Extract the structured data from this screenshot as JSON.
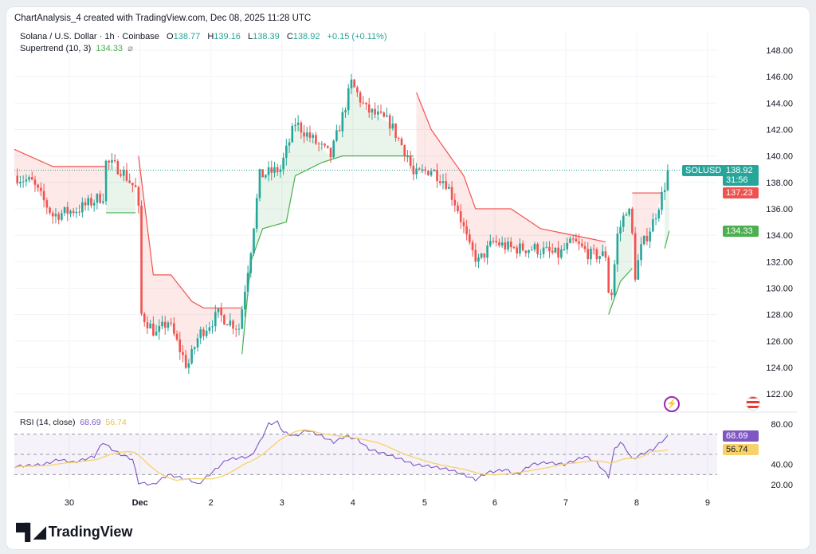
{
  "header": {
    "title": "ChartAnalysis_4 created with TradingView.com, Dec 08, 2025 11:28 UTC"
  },
  "legend": {
    "symbol": "Solana / U.S. Dollar · 1h · Coinbase",
    "o_label": "O",
    "o": "138.77",
    "h_label": "H",
    "h": "139.16",
    "l_label": "L",
    "l": "138.39",
    "c_label": "C",
    "c": "138.92",
    "change": "+0.15 (+0.11%)",
    "supertrend_label": "Supertrend (10, 3)",
    "supertrend_value": "134.33",
    "supertrend_icon": "⌀"
  },
  "rsi_legend": {
    "label": "RSI (14, close)",
    "value": "68.69",
    "ma": "56.74"
  },
  "tags": {
    "symbol": "SOLUSD",
    "price": "138.92",
    "countdown": "31:56",
    "st_down": "137.23",
    "st_up": "134.33",
    "rsi": "68.69",
    "rsi_ma": "56.74"
  },
  "brand": {
    "name": "TradingView"
  },
  "colors": {
    "up": "#26a69a",
    "down": "#ef5350",
    "st_up": "#4caf50",
    "st_down": "#ef5350",
    "rsi": "#7e57c2",
    "rsi_ma": "#f7d26a"
  },
  "chart_data": {
    "type": "candlestick",
    "title": "Solana / U.S. Dollar · 1h · Coinbase",
    "x_unit": "hours from chart start",
    "ylim": [
      121,
      149
    ],
    "price_ticks": [
      "148.00",
      "146.00",
      "144.00",
      "142.00",
      "140.00",
      "138.00",
      "136.00",
      "134.00",
      "132.00",
      "130.00",
      "128.00",
      "126.00",
      "124.00",
      "122.00"
    ],
    "x_ticks": [
      {
        "h": 18.6,
        "label": "30"
      },
      {
        "h": 42.5,
        "label": "Dec"
      },
      {
        "h": 66.5,
        "label": "2"
      },
      {
        "h": 90.5,
        "label": "3"
      },
      {
        "h": 114.5,
        "label": "4"
      },
      {
        "h": 138.8,
        "label": "5"
      },
      {
        "h": 162.5,
        "label": "6"
      },
      {
        "h": 186.5,
        "label": "7"
      },
      {
        "h": 210.5,
        "label": "8"
      },
      {
        "h": 234.5,
        "label": "9"
      }
    ],
    "close_path": [
      [
        0,
        138.5
      ],
      [
        6,
        138
      ],
      [
        13,
        135.5
      ],
      [
        22,
        136
      ],
      [
        30,
        137
      ],
      [
        31,
        139.5
      ],
      [
        36,
        139
      ],
      [
        41,
        137.5
      ],
      [
        42.5,
        135
      ],
      [
        43,
        128
      ],
      [
        48,
        126.5
      ],
      [
        52,
        127.5
      ],
      [
        58.5,
        124
      ],
      [
        62.5,
        126.5
      ],
      [
        69,
        128
      ],
      [
        76,
        127
      ],
      [
        80,
        133
      ],
      [
        83,
        138.5
      ],
      [
        90,
        139
      ],
      [
        95,
        142.5
      ],
      [
        102,
        141
      ],
      [
        107,
        140
      ],
      [
        111,
        143
      ],
      [
        114,
        145.5
      ],
      [
        119,
        143.5
      ],
      [
        127,
        142.5
      ],
      [
        133,
        140
      ],
      [
        135,
        138.5
      ],
      [
        141,
        139
      ],
      [
        146,
        138
      ],
      [
        150,
        136
      ],
      [
        154,
        133
      ],
      [
        157,
        132
      ],
      [
        162,
        133.5
      ],
      [
        168,
        133
      ],
      [
        176,
        133
      ],
      [
        184,
        132.5
      ],
      [
        189,
        133.5
      ],
      [
        195,
        132.5
      ],
      [
        200,
        132.5
      ],
      [
        201.5,
        128.5
      ],
      [
        204,
        134
      ],
      [
        207,
        136
      ],
      [
        208.5,
        135.5
      ],
      [
        210,
        131
      ],
      [
        212,
        133
      ],
      [
        216,
        135
      ],
      [
        219,
        137
      ],
      [
        221.5,
        138.92
      ]
    ],
    "supertrend": [
      {
        "dir": "down",
        "points": [
          [
            0,
            140.5
          ],
          [
            13,
            139.2
          ],
          [
            31,
            139.2
          ]
        ]
      },
      {
        "dir": "up",
        "points": [
          [
            31,
            135.7
          ],
          [
            41,
            135.7
          ]
        ]
      },
      {
        "dir": "down",
        "points": [
          [
            42,
            140
          ],
          [
            47,
            131
          ],
          [
            53,
            131
          ],
          [
            60,
            129
          ],
          [
            64,
            128.5
          ],
          [
            77,
            128.5
          ]
        ]
      },
      {
        "dir": "up",
        "points": [
          [
            77,
            125
          ],
          [
            80,
            132
          ],
          [
            84,
            134.5
          ],
          [
            92,
            135
          ],
          [
            95,
            138.5
          ],
          [
            104,
            139.5
          ],
          [
            111,
            140
          ],
          [
            135,
            140
          ]
        ]
      },
      {
        "dir": "down",
        "points": [
          [
            136,
            144.8
          ],
          [
            141,
            142
          ],
          [
            152,
            138.5
          ],
          [
            156,
            136
          ],
          [
            168,
            136
          ],
          [
            178,
            134.5
          ],
          [
            189,
            134
          ],
          [
            200,
            133.5
          ]
        ]
      },
      {
        "dir": "up",
        "points": [
          [
            201,
            128
          ],
          [
            205,
            130.5
          ],
          [
            209,
            131.5
          ]
        ]
      },
      {
        "dir": "down",
        "points": [
          [
            209,
            137.2
          ],
          [
            219,
            137.2
          ]
        ]
      },
      {
        "dir": "up",
        "points": [
          [
            220,
            133
          ],
          [
            221.5,
            134.33
          ]
        ]
      }
    ],
    "rsi": {
      "ylim": [
        10,
        85
      ],
      "ticks": [
        "80.00",
        "40.00",
        "20.00"
      ],
      "levels": [
        70,
        50,
        30
      ],
      "path": [
        [
          0,
          38
        ],
        [
          10,
          40
        ],
        [
          15,
          45
        ],
        [
          20,
          42
        ],
        [
          27,
          48
        ],
        [
          30,
          62
        ],
        [
          33,
          55
        ],
        [
          36,
          50
        ],
        [
          40,
          45
        ],
        [
          42,
          22
        ],
        [
          47,
          20
        ],
        [
          52,
          30
        ],
        [
          60,
          24
        ],
        [
          62,
          20
        ],
        [
          66,
          30
        ],
        [
          72,
          45
        ],
        [
          80,
          48
        ],
        [
          83,
          62
        ],
        [
          86,
          80
        ],
        [
          89,
          82
        ],
        [
          91,
          72
        ],
        [
          95,
          68
        ],
        [
          99,
          74
        ],
        [
          104,
          68
        ],
        [
          108,
          62
        ],
        [
          112,
          68
        ],
        [
          116,
          65
        ],
        [
          120,
          55
        ],
        [
          126,
          50
        ],
        [
          131,
          45
        ],
        [
          135,
          40
        ],
        [
          141,
          38
        ],
        [
          147,
          35
        ],
        [
          152,
          30
        ],
        [
          156,
          25
        ],
        [
          160,
          32
        ],
        [
          166,
          35
        ],
        [
          170,
          30
        ],
        [
          175,
          40
        ],
        [
          180,
          42
        ],
        [
          186,
          40
        ],
        [
          193,
          48
        ],
        [
          197,
          42
        ],
        [
          201,
          28
        ],
        [
          203,
          55
        ],
        [
          205,
          62
        ],
        [
          207,
          55
        ],
        [
          209,
          45
        ],
        [
          212,
          50
        ],
        [
          216,
          55
        ],
        [
          219,
          63
        ],
        [
          221.5,
          68.69
        ]
      ]
    }
  }
}
